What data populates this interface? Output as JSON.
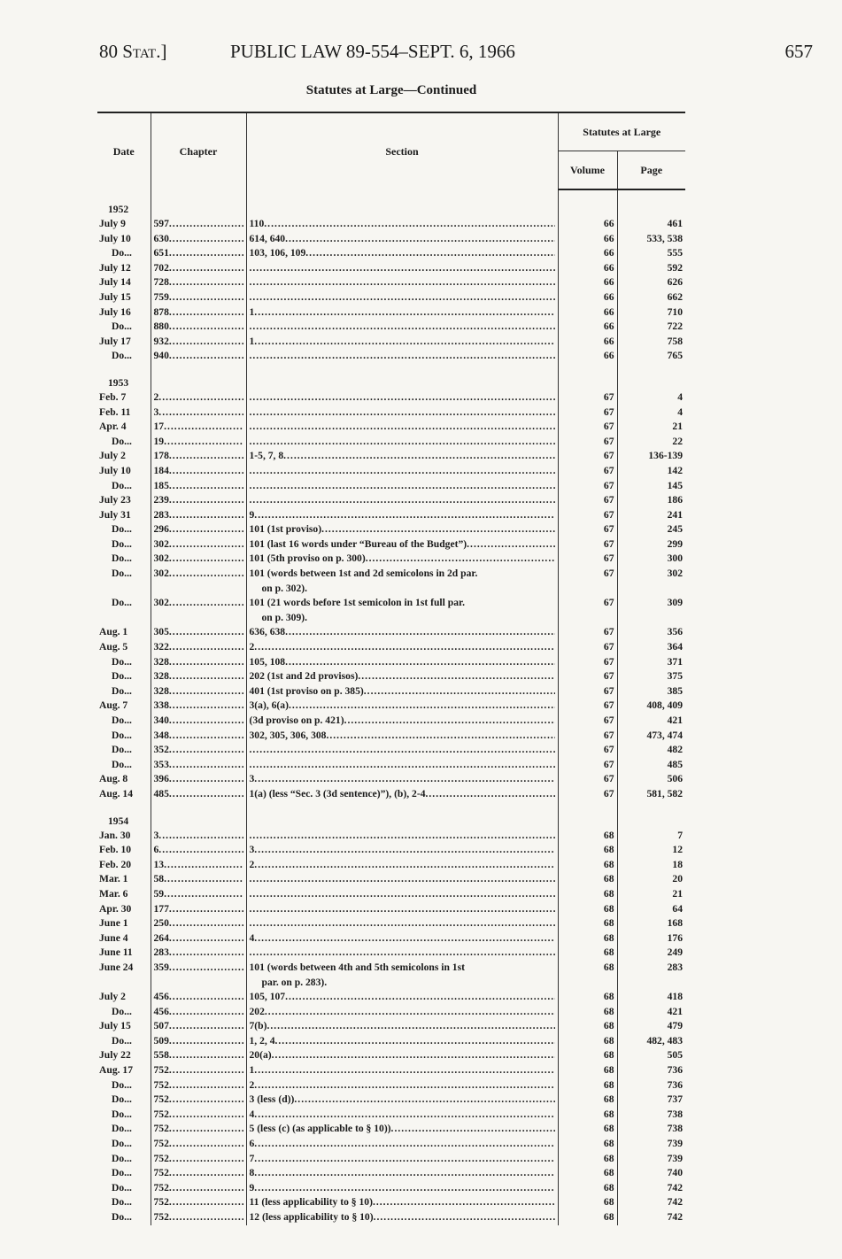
{
  "header": {
    "left": "80 Stat.]",
    "center": "PUBLIC LAW 89-554–SEPT. 6, 1966",
    "page_number": "657"
  },
  "title": "Statutes at Large—Continued",
  "columns": {
    "date": "Date",
    "chapter": "Chapter",
    "section": "Section",
    "statutes_at_large": "Statutes at Large",
    "volume": "Volume",
    "page": "Page"
  },
  "groups": [
    {
      "year": "1952",
      "rows": [
        [
          "July 9",
          "597",
          "110",
          "66",
          "461"
        ],
        [
          "July 10",
          "630",
          "614, 640",
          "66",
          "533, 538"
        ],
        [
          "Do",
          "651",
          "103, 106, 109",
          "66",
          "555"
        ],
        [
          "July 12",
          "702",
          "",
          "66",
          "592"
        ],
        [
          "July 14",
          "728",
          "",
          "66",
          "626"
        ],
        [
          "July 15",
          "759",
          "",
          "66",
          "662"
        ],
        [
          "July 16",
          "878",
          "1",
          "66",
          "710"
        ],
        [
          "Do",
          "880",
          "",
          "66",
          "722"
        ],
        [
          "July 17",
          "932",
          "1",
          "66",
          "758"
        ],
        [
          "Do",
          "940",
          "",
          "66",
          "765"
        ]
      ]
    },
    {
      "year": "1953",
      "rows": [
        [
          "Feb. 7",
          "2",
          "",
          "67",
          "4"
        ],
        [
          "Feb. 11",
          "3",
          "",
          "67",
          "4"
        ],
        [
          "Apr. 4",
          "17",
          "",
          "67",
          "21"
        ],
        [
          "Do",
          "19",
          "",
          "67",
          "22"
        ],
        [
          "July 2",
          "178",
          "1-5, 7, 8",
          "67",
          "136-139"
        ],
        [
          "July 10",
          "184",
          "",
          "67",
          "142"
        ],
        [
          "Do",
          "185",
          "",
          "67",
          "145"
        ],
        [
          "July 23",
          "239",
          "",
          "67",
          "186"
        ],
        [
          "July 31",
          "283",
          "9",
          "67",
          "241"
        ],
        [
          "Do",
          "296",
          "101 (1st proviso)",
          "67",
          "245"
        ],
        [
          "Do",
          "302",
          "101 (last 16 words under “Bureau of the Budget”)",
          "67",
          "299"
        ],
        [
          "Do",
          "302",
          "101 (5th proviso on p. 300)",
          "67",
          "300"
        ],
        [
          "Do",
          "302",
          "101 (words between 1st and 2d semicolons in 2d par. on p. 302).",
          "67",
          "302"
        ],
        [
          "Do",
          "302",
          "101 (21 words before 1st semicolon in 1st full par. on p. 309).",
          "67",
          "309"
        ],
        [
          "Aug. 1",
          "305",
          "636, 638",
          "67",
          "356"
        ],
        [
          "Aug. 5",
          "322",
          "2",
          "67",
          "364"
        ],
        [
          "Do",
          "328",
          "105, 108",
          "67",
          "371"
        ],
        [
          "Do",
          "328",
          "202 (1st and 2d provisos)",
          "67",
          "375"
        ],
        [
          "Do",
          "328",
          "401 (1st proviso on p. 385)",
          "67",
          "385"
        ],
        [
          "Aug. 7",
          "338",
          "3(a), 6(a)",
          "67",
          "408, 409"
        ],
        [
          "Do",
          "340",
          "(3d proviso on p. 421)",
          "67",
          "421"
        ],
        [
          "Do",
          "348",
          "302, 305, 306, 308",
          "67",
          "473, 474"
        ],
        [
          "Do",
          "352",
          "",
          "67",
          "482"
        ],
        [
          "Do",
          "353",
          "",
          "67",
          "485"
        ],
        [
          "Aug. 8",
          "396",
          "3",
          "67",
          "506"
        ],
        [
          "Aug. 14",
          "485",
          "1(a) (less “Sec. 3 (3d sentence)”), (b), 2-4",
          "67",
          "581, 582"
        ]
      ]
    },
    {
      "year": "1954",
      "rows": [
        [
          "Jan. 30",
          "3",
          "",
          "68",
          "7"
        ],
        [
          "Feb. 10",
          "6",
          "3",
          "68",
          "12"
        ],
        [
          "Feb. 20",
          "13",
          "2",
          "68",
          "18"
        ],
        [
          "Mar. 1",
          "58",
          "",
          "68",
          "20"
        ],
        [
          "Mar. 6",
          "59",
          "",
          "68",
          "21"
        ],
        [
          "Apr. 30",
          "177",
          "",
          "68",
          "64"
        ],
        [
          "June 1",
          "250",
          "",
          "68",
          "168"
        ],
        [
          "June 4",
          "264",
          "4",
          "68",
          "176"
        ],
        [
          "June 11",
          "283",
          "",
          "68",
          "249"
        ],
        [
          "June 24",
          "359",
          "101 (words between 4th and 5th semicolons in 1st par. on p. 283).",
          "68",
          "283"
        ],
        [
          "July 2",
          "456",
          "105, 107",
          "68",
          "418"
        ],
        [
          "Do",
          "456",
          "202",
          "68",
          "421"
        ],
        [
          "July 15",
          "507",
          "7(b)",
          "68",
          "479"
        ],
        [
          "Do",
          "509",
          "1, 2, 4",
          "68",
          "482, 483"
        ],
        [
          "July 22",
          "558",
          "20(a)",
          "68",
          "505"
        ],
        [
          "Aug. 17",
          "752",
          "1",
          "68",
          "736"
        ],
        [
          "Do",
          "752",
          "2",
          "68",
          "736"
        ],
        [
          "Do",
          "752",
          "3 (less (d))",
          "68",
          "737"
        ],
        [
          "Do",
          "752",
          "4",
          "68",
          "738"
        ],
        [
          "Do",
          "752",
          "5 (less (c) (as applicable to § 10))",
          "68",
          "738"
        ],
        [
          "Do",
          "752",
          "6",
          "68",
          "739"
        ],
        [
          "Do",
          "752",
          "7",
          "68",
          "739"
        ],
        [
          "Do",
          "752",
          "8",
          "68",
          "740"
        ],
        [
          "Do",
          "752",
          "9",
          "68",
          "742"
        ],
        [
          "Do",
          "752",
          "11 (less applicability to § 10)",
          "68",
          "742"
        ],
        [
          "Do",
          "752",
          "12 (less applicability to § 10)",
          "68",
          "742"
        ]
      ]
    }
  ]
}
